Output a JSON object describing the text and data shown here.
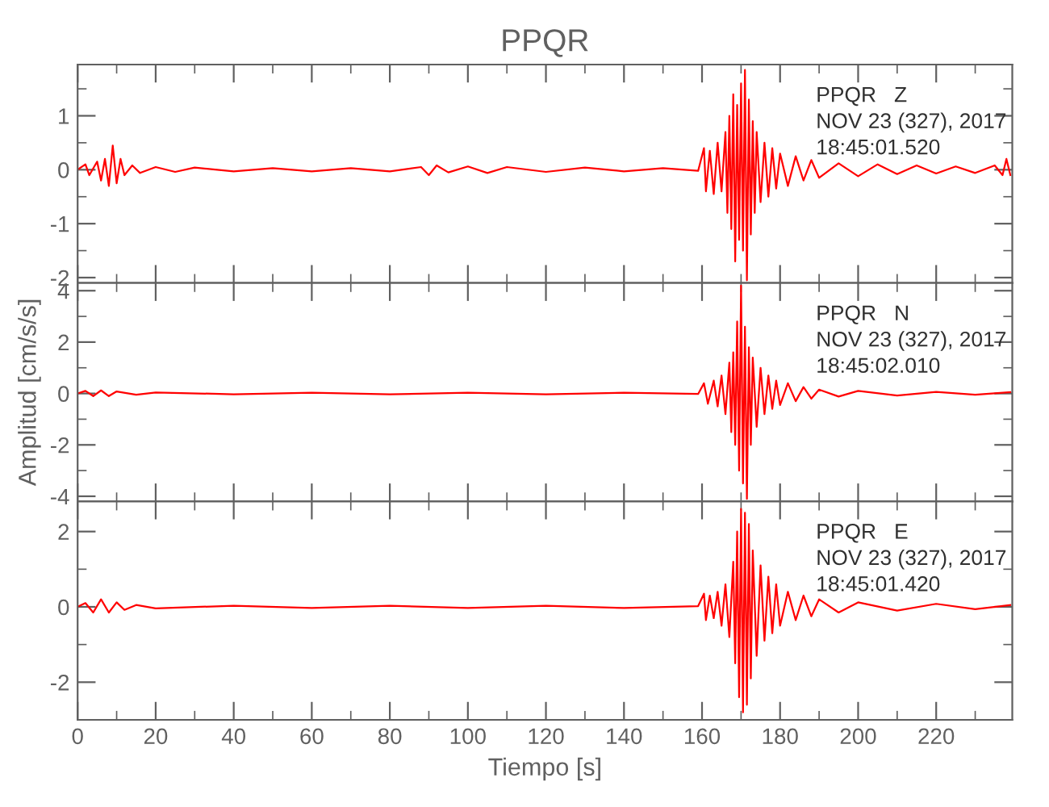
{
  "chart_data": [
    {
      "type": "line",
      "title": "PPQR",
      "annotations": [
        "PPQR   Z",
        "NOV 23 (327), 2017",
        "18:45:01.520"
      ],
      "xlim": [
        0,
        239.5
      ],
      "xticks": [
        0,
        20,
        40,
        60,
        80,
        100,
        120,
        140,
        160,
        180,
        200,
        220
      ],
      "ylim": [
        -2.1,
        1.95
      ],
      "yticks": [
        -2,
        -1,
        0,
        1
      ],
      "tick_labels": "y",
      "grid": false,
      "series": [
        {
          "color": "#ff0000",
          "x": [
            0,
            2,
            3,
            5,
            6,
            7,
            8,
            9,
            10,
            11,
            12,
            14,
            16,
            20,
            25,
            30,
            40,
            50,
            60,
            70,
            80,
            88,
            90,
            92,
            95,
            100,
            105,
            110,
            120,
            130,
            140,
            150,
            159,
            160.5,
            161,
            162,
            163,
            164,
            165,
            166,
            166.5,
            167,
            167.5,
            168,
            168.5,
            169,
            169.5,
            170,
            170.5,
            171,
            171.5,
            172,
            172.5,
            173,
            173.5,
            174,
            175,
            176,
            177,
            178,
            179,
            180,
            182,
            184,
            186,
            188,
            190,
            195,
            200,
            205,
            210,
            215,
            220,
            225,
            230,
            235,
            237,
            238,
            239
          ],
          "values": [
            0,
            0.1,
            -0.1,
            0.15,
            -0.2,
            0.2,
            -0.3,
            0.45,
            -0.25,
            0.2,
            -0.1,
            0.08,
            -0.06,
            0.05,
            -0.04,
            0.04,
            -0.03,
            0.03,
            -0.03,
            0.03,
            -0.03,
            0.05,
            -0.1,
            0.08,
            -0.05,
            0.06,
            -0.06,
            0.05,
            -0.04,
            0.04,
            -0.03,
            0.03,
            -0.02,
            0.4,
            -0.4,
            0.35,
            -0.45,
            0.5,
            -0.4,
            0.7,
            -0.8,
            1.0,
            -1.1,
            1.4,
            -1.7,
            1.2,
            -1.3,
            1.6,
            -1.5,
            1.85,
            -2.05,
            1.3,
            -1.2,
            0.9,
            -0.8,
            0.7,
            -0.6,
            0.5,
            -0.5,
            0.4,
            -0.35,
            0.3,
            -0.3,
            0.25,
            -0.2,
            0.18,
            -0.15,
            0.12,
            -0.12,
            0.1,
            -0.08,
            0.08,
            -0.07,
            0.06,
            -0.06,
            0.08,
            -0.1,
            0.2,
            -0.1
          ]
        }
      ]
    },
    {
      "type": "line",
      "ylabel": "Amplitud [cm/s/s]",
      "annotations": [
        "PPQR   N",
        "NOV 23 (327), 2017",
        "18:45:02.010"
      ],
      "xlim": [
        0,
        239.5
      ],
      "xticks": [
        0,
        20,
        40,
        60,
        80,
        100,
        120,
        140,
        160,
        180,
        200,
        220
      ],
      "ylim": [
        -4.2,
        4.3
      ],
      "yticks": [
        -4,
        -2,
        0,
        2,
        4
      ],
      "tick_labels": "y",
      "grid": false,
      "series": [
        {
          "color": "#ff0000",
          "x": [
            0,
            2,
            4,
            6,
            8,
            10,
            15,
            20,
            40,
            60,
            80,
            100,
            120,
            140,
            159,
            160.5,
            161.5,
            163,
            164,
            165,
            166,
            167,
            167.5,
            168,
            168.5,
            169,
            169.5,
            170,
            170.5,
            171,
            171.5,
            172,
            172.5,
            173,
            174,
            175,
            176,
            177,
            178,
            179,
            180,
            182,
            184,
            186,
            188,
            190,
            195,
            200,
            210,
            220,
            230,
            239
          ],
          "values": [
            0,
            0.1,
            -0.1,
            0.12,
            -0.1,
            0.08,
            -0.05,
            0.04,
            -0.03,
            0.03,
            -0.03,
            0.03,
            -0.03,
            0.03,
            -0.02,
            0.4,
            -0.4,
            0.5,
            -0.5,
            0.7,
            -0.8,
            1.2,
            -1.5,
            1.6,
            -2.0,
            2.8,
            -3.0,
            4.2,
            -3.5,
            2.6,
            -4.1,
            1.8,
            -2.0,
            1.4,
            -1.3,
            1.0,
            -0.8,
            0.7,
            -0.6,
            0.5,
            -0.45,
            0.4,
            -0.3,
            0.25,
            -0.2,
            0.15,
            -0.12,
            0.1,
            -0.08,
            0.06,
            -0.05,
            0.05
          ]
        }
      ]
    },
    {
      "type": "line",
      "xlabel": "Tiempo [s]",
      "annotations": [
        "PPQR   E",
        "NOV 23 (327), 2017",
        "18:45:01.420"
      ],
      "xlim": [
        0,
        239.5
      ],
      "xticks": [
        0,
        20,
        40,
        60,
        80,
        100,
        120,
        140,
        160,
        180,
        200,
        220
      ],
      "ylim": [
        -3.0,
        2.8
      ],
      "yticks": [
        -2,
        0,
        2
      ],
      "grid": false,
      "series": [
        {
          "color": "#ff0000",
          "x": [
            0,
            2,
            4,
            6,
            8,
            10,
            12,
            15,
            20,
            40,
            60,
            80,
            100,
            120,
            140,
            159,
            160.5,
            161,
            162,
            163,
            164,
            165,
            166,
            167,
            168,
            168.5,
            169,
            169.5,
            170,
            170.5,
            171,
            171.5,
            172,
            172.5,
            173,
            174,
            175,
            176,
            177,
            178,
            179,
            180,
            182,
            184,
            186,
            188,
            190,
            195,
            200,
            210,
            220,
            230,
            239
          ],
          "values": [
            0,
            0.1,
            -0.15,
            0.2,
            -0.15,
            0.12,
            -0.08,
            0.05,
            -0.04,
            0.03,
            -0.03,
            0.03,
            -0.03,
            0.03,
            -0.03,
            0.02,
            0.35,
            -0.35,
            0.3,
            -0.3,
            0.4,
            -0.5,
            0.6,
            -0.8,
            1.2,
            -1.5,
            2.0,
            -2.4,
            2.6,
            -2.8,
            2.5,
            -2.6,
            2.2,
            -1.9,
            1.5,
            -1.3,
            1.1,
            -0.9,
            0.8,
            -0.7,
            0.6,
            -0.5,
            0.4,
            -0.35,
            0.3,
            -0.25,
            0.2,
            -0.15,
            0.12,
            -0.1,
            0.08,
            -0.06,
            0.05
          ]
        }
      ]
    }
  ]
}
